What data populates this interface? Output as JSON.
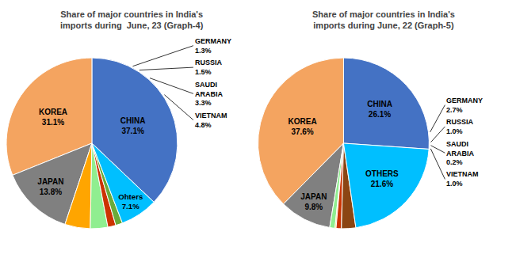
{
  "chart_data": [
    {
      "type": "pie",
      "title": "Share of major countries in India's\nimports during  June, 23 (Graph-4)",
      "categories": [
        "CHINA",
        "KOREA",
        "JAPAN",
        "VIETNAM",
        "SAUDI\nARABIA",
        "RUSSIA",
        "GERMANY",
        "Ohters"
      ],
      "values": [
        37.1,
        31.1,
        13.8,
        4.8,
        3.3,
        1.5,
        1.3,
        7.1
      ],
      "value_labels": [
        "37.1%",
        "31.1%",
        "13.8%",
        "4.8%",
        "3.3%",
        "1.5%",
        "1.3%",
        "7.1%"
      ],
      "colors": [
        "#4472C4",
        "#F4A460",
        "#808080",
        "#FFA500",
        "#90EE90",
        "#CC3300",
        "#6AAB3A",
        "#00BFFF"
      ]
    },
    {
      "type": "pie",
      "title": "Share of major countries in India's\nimports during June, 22 (Graph-5)",
      "categories": [
        "CHINA",
        "KOREA",
        "JAPAN",
        "VIETNAM",
        "SAUDI\nARABIA",
        "RUSSIA",
        "GERMANY",
        "OTHERS"
      ],
      "values": [
        26.1,
        37.6,
        9.8,
        1.0,
        0.2,
        1.0,
        2.7,
        21.6
      ],
      "value_labels": [
        "26.1%",
        "37.6%",
        "9.8%",
        "1.0%",
        "0.2%",
        "1.0%",
        "2.7%",
        "21.6%"
      ],
      "colors": [
        "#4472C4",
        "#F4A460",
        "#808080",
        "#90EE90",
        "#FFD700",
        "#CC3300",
        "#8B4513",
        "#00BFFF"
      ]
    }
  ]
}
